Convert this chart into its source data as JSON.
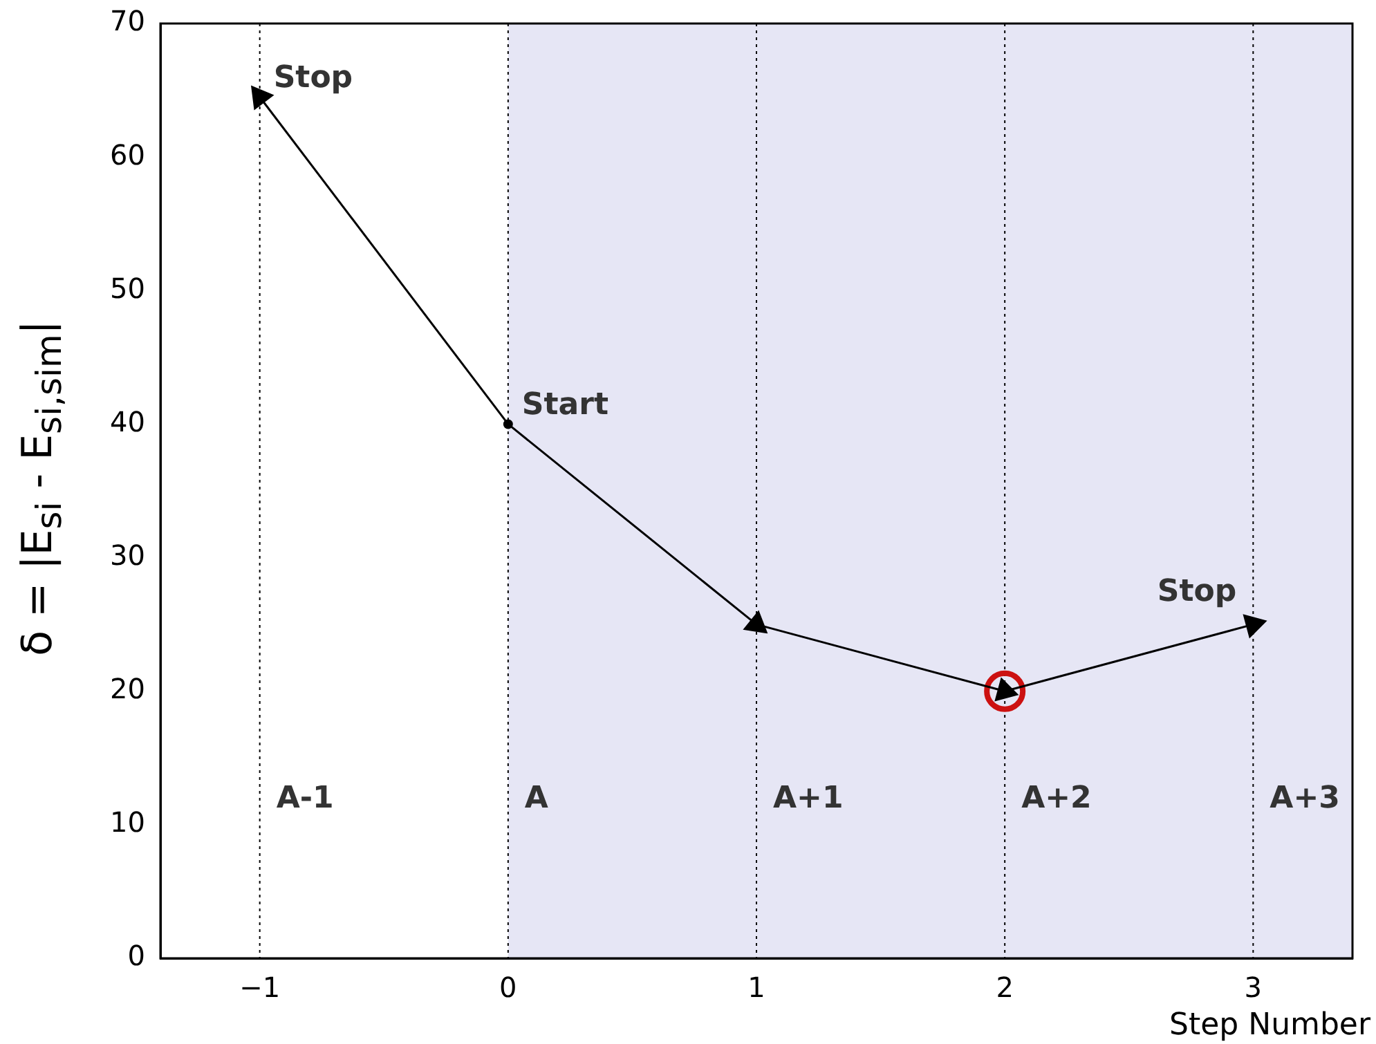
{
  "chart_data": {
    "type": "line",
    "xlabel": "Step Number",
    "ylabel": "δ = |E$_{si}$ - E$_{si,sim}$|",
    "xlim": [
      -1.4,
      3.4
    ],
    "ylim": [
      0,
      70
    ],
    "xticks": [
      {
        "value": -1,
        "label": "−1"
      },
      0,
      1,
      2,
      3
    ],
    "yticks": [
      0,
      10,
      20,
      30,
      40,
      50,
      60,
      70
    ],
    "grid": false,
    "legend": false,
    "series": [
      {
        "color": "#000000",
        "x": [
          0,
          -1
        ],
        "values": [
          40,
          64.5
        ],
        "marker": "triangle"
      },
      {
        "color": "#000000",
        "x": [
          0,
          1,
          2,
          3
        ],
        "values": [
          40,
          25,
          20,
          25
        ],
        "marker": "triangle"
      },
      {
        "type": "scatter",
        "color": "#000000",
        "x": [
          0
        ],
        "values": [
          40
        ],
        "marker": "circle"
      },
      {
        "type": "scatter",
        "color": "#cc1111",
        "x": [
          2
        ],
        "values": [
          20
        ],
        "marker": "circle"
      }
    ],
    "bands": [
      {
        "axis": "x",
        "from": 0,
        "to": 3.4,
        "color": "#e6e6f5"
      }
    ],
    "ref_lines": [
      {
        "axis": "x",
        "value": -1,
        "label": "A-1",
        "line_style": "dotted"
      },
      {
        "axis": "x",
        "value": 0,
        "label": "A",
        "line_style": "dotted"
      },
      {
        "axis": "x",
        "value": 1,
        "label": "A+1",
        "line_style": "dotted"
      },
      {
        "axis": "x",
        "value": 2,
        "label": "A+2",
        "line_style": "dotted"
      },
      {
        "axis": "x",
        "value": 3,
        "label": "A+3",
        "line_style": "dotted"
      }
    ],
    "annotations": [
      {
        "text": "Stop",
        "x": -1,
        "y": 64.5
      },
      {
        "text": "Start",
        "x": 0,
        "y": 40
      },
      {
        "text": "Stop",
        "x": 3,
        "y": 25
      }
    ]
  }
}
